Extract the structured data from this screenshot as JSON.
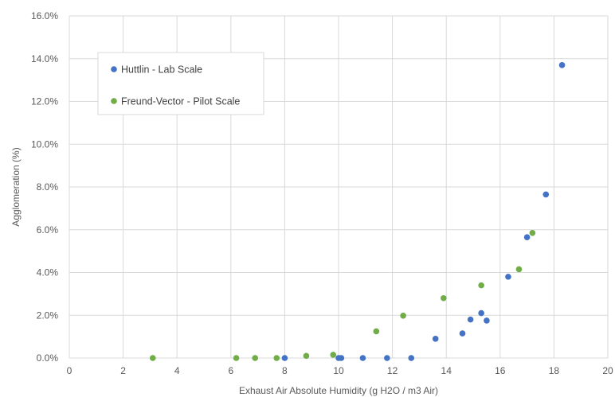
{
  "chart_data": {
    "type": "scatter",
    "title": "",
    "xlabel": "Exhaust Air Absolute Humidity (g H2O / m3 Air)",
    "ylabel": "Agglomeration (%)",
    "xlim": [
      0,
      20
    ],
    "ylim": [
      0,
      16
    ],
    "x_ticks": [
      0,
      2,
      4,
      6,
      8,
      10,
      12,
      14,
      16,
      18,
      20
    ],
    "x_tick_labels": [
      "0",
      "2",
      "4",
      "6",
      "8",
      "10",
      "12",
      "14",
      "16",
      "18",
      "20"
    ],
    "y_ticks": [
      0,
      2,
      4,
      6,
      8,
      10,
      12,
      14,
      16
    ],
    "y_tick_labels": [
      "0.0%",
      "2.0%",
      "4.0%",
      "6.0%",
      "8.0%",
      "10.0%",
      "12.0%",
      "14.0%",
      "16.0%"
    ],
    "grid": true,
    "legend_position": "upper-left",
    "series": [
      {
        "name": "Huttlin - Lab Scale",
        "color": "#4472C4",
        "points": [
          [
            8.0,
            0.0
          ],
          [
            10.0,
            0.0
          ],
          [
            10.1,
            0.0
          ],
          [
            10.9,
            0.0
          ],
          [
            11.8,
            0.0
          ],
          [
            12.7,
            0.0
          ],
          [
            13.6,
            0.9
          ],
          [
            14.6,
            1.15
          ],
          [
            14.9,
            1.8
          ],
          [
            15.3,
            2.1
          ],
          [
            15.5,
            1.75
          ],
          [
            16.3,
            3.8
          ],
          [
            17.0,
            5.65
          ],
          [
            17.7,
            7.65
          ],
          [
            18.3,
            13.7
          ]
        ]
      },
      {
        "name": "Freund-Vector - Pilot Scale",
        "color": "#70AD47",
        "points": [
          [
            3.1,
            0.0
          ],
          [
            6.2,
            0.0
          ],
          [
            6.9,
            0.0
          ],
          [
            7.7,
            0.0
          ],
          [
            8.8,
            0.1
          ],
          [
            9.8,
            0.15
          ],
          [
            11.4,
            1.25
          ],
          [
            12.4,
            1.98
          ],
          [
            13.9,
            2.8
          ],
          [
            15.3,
            3.4
          ],
          [
            16.7,
            4.15
          ],
          [
            17.2,
            5.85
          ]
        ]
      }
    ]
  }
}
